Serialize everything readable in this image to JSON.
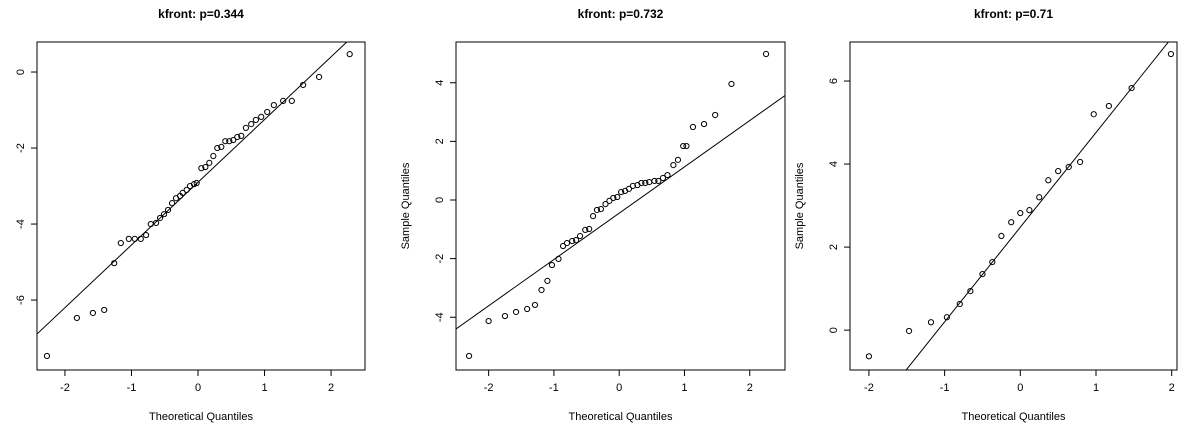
{
  "chart_data": [
    {
      "type": "scatter",
      "title": "kfront: p=0.344",
      "xlabel": "Theoretical Quantiles",
      "x": [
        -2.27,
        -1.82,
        -1.58,
        -1.41,
        -1.26,
        -1.16,
        -1.04,
        -0.95,
        -0.86,
        -0.78,
        -0.71,
        -0.63,
        -0.57,
        -0.51,
        -0.45,
        -0.39,
        -0.33,
        -0.27,
        -0.23,
        -0.17,
        -0.12,
        -0.06,
        -0.02,
        0.05,
        0.11,
        0.17,
        0.23,
        0.29,
        0.35,
        0.41,
        0.47,
        0.53,
        0.59,
        0.65,
        0.72,
        0.8,
        0.87,
        0.95,
        1.04,
        1.14,
        1.28,
        1.41,
        1.58,
        1.82,
        2.28
      ],
      "values": [
        -7.47,
        -6.47,
        -6.34,
        -6.26,
        -5.03,
        -4.5,
        -4.39,
        -4.39,
        -4.39,
        -4.29,
        -4.0,
        -3.97,
        -3.84,
        -3.74,
        -3.63,
        -3.45,
        -3.32,
        -3.26,
        -3.18,
        -3.1,
        -3.0,
        -2.95,
        -2.92,
        -2.53,
        -2.5,
        -2.39,
        -2.21,
        -2.0,
        -1.97,
        -1.82,
        -1.82,
        -1.79,
        -1.71,
        -1.68,
        -1.47,
        -1.37,
        -1.26,
        -1.18,
        -1.05,
        -0.87,
        -0.76,
        -0.76,
        -0.34,
        -0.13,
        0.47
      ],
      "reference_line": {
        "intercept": -2.9,
        "slope": 1.65
      },
      "xlim": [
        -2.42,
        2.51
      ],
      "ylim": [
        -7.84,
        0.79
      ],
      "xticks": [
        -2,
        -1,
        0,
        1,
        2
      ],
      "yticks": [
        -6,
        -4,
        -2,
        0
      ],
      "color": "#000000"
    },
    {
      "type": "scatter",
      "title": "kfront: p=0.732",
      "xlabel": "Theoretical Quantiles",
      "ylabel": "Sample Quantiles",
      "x": [
        -2.3,
        -2.0,
        -1.75,
        -1.58,
        -1.41,
        -1.29,
        -1.19,
        -1.1,
        -1.03,
        -0.93,
        -0.86,
        -0.8,
        -0.72,
        -0.66,
        -0.6,
        -0.52,
        -0.46,
        -0.4,
        -0.34,
        -0.28,
        -0.21,
        -0.15,
        -0.09,
        -0.03,
        0.03,
        0.09,
        0.15,
        0.21,
        0.28,
        0.34,
        0.4,
        0.46,
        0.54,
        0.6,
        0.67,
        0.74,
        0.83,
        0.9,
        0.98,
        1.03,
        1.13,
        1.3,
        1.47,
        1.72,
        2.25
      ],
      "values": [
        -5.32,
        -4.13,
        -3.96,
        -3.82,
        -3.72,
        -3.58,
        -3.07,
        -2.76,
        -2.22,
        -2.01,
        -1.57,
        -1.47,
        -1.4,
        -1.37,
        -1.23,
        -1.02,
        -0.99,
        -0.55,
        -0.34,
        -0.31,
        -0.14,
        -0.03,
        0.07,
        0.1,
        0.27,
        0.31,
        0.38,
        0.48,
        0.51,
        0.58,
        0.58,
        0.61,
        0.65,
        0.65,
        0.75,
        0.85,
        1.19,
        1.37,
        1.84,
        1.84,
        2.49,
        2.59,
        2.9,
        3.96,
        4.98
      ],
      "reference_line": {
        "intercept": -0.45,
        "slope": 1.58
      },
      "xlim": [
        -2.5,
        2.54
      ],
      "ylim": [
        -5.8,
        5.39
      ],
      "xticks": [
        -2,
        -1,
        0,
        1,
        2
      ],
      "yticks": [
        -4,
        -2,
        0,
        2,
        4
      ],
      "color": "#000000"
    },
    {
      "type": "scatter",
      "title": "kfront: p=0.71",
      "xlabel": "Theoretical Quantiles",
      "ylabel": "Sample Quantiles",
      "x": [
        -2.0,
        -1.47,
        -1.18,
        -0.97,
        -0.8,
        -0.66,
        -0.5,
        -0.37,
        -0.25,
        -0.12,
        0,
        0.12,
        0.25,
        0.37,
        0.5,
        0.64,
        0.79,
        0.97,
        1.17,
        1.47,
        1.99
      ],
      "values": [
        -0.63,
        -0.02,
        0.19,
        0.31,
        0.63,
        0.94,
        1.35,
        1.64,
        2.27,
        2.6,
        2.82,
        2.89,
        3.2,
        3.61,
        3.83,
        3.93,
        4.05,
        5.2,
        5.4,
        5.83,
        6.65
      ],
      "reference_line": {
        "intercept": 2.48,
        "slope": 2.28
      },
      "xlim": [
        -2.25,
        2.07
      ],
      "ylim": [
        -0.96,
        6.94
      ],
      "xticks": [
        -2,
        -1,
        0,
        1,
        2
      ],
      "yticks": [
        0,
        2,
        4,
        6
      ],
      "color": "#000000"
    }
  ]
}
